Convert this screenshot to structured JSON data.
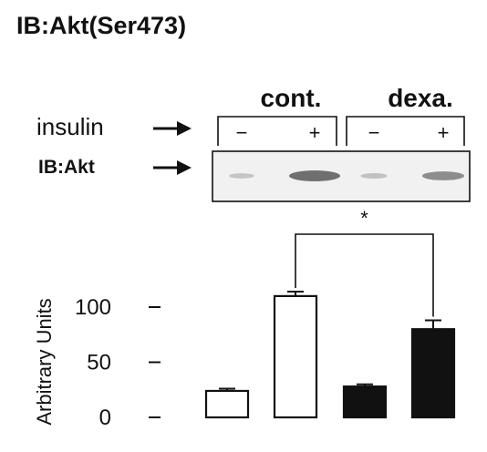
{
  "header": {
    "title": "IB:Akt(Ser473)"
  },
  "blot": {
    "group_labels": [
      "cont.",
      "dexa."
    ],
    "row_labels": [
      "insulin",
      "IB:Akt"
    ],
    "lane_signs": [
      "−",
      "+",
      "−",
      "+"
    ],
    "arrow_glyph": "→"
  },
  "significance": {
    "marker": "*"
  },
  "chart_data": {
    "type": "bar",
    "title": "",
    "xlabel": "",
    "ylabel": "Arbitrary Units",
    "ylim": [
      0,
      120
    ],
    "yticks": [
      0,
      50,
      100
    ],
    "ytick_labels": [
      "0",
      "50",
      "100"
    ],
    "categories": [
      "cont. −",
      "cont. +",
      "dexa. −",
      "dexa. +"
    ],
    "values": [
      24,
      110,
      28,
      80
    ],
    "errors": [
      2,
      4,
      2,
      8
    ],
    "bar_colors": [
      "#ffffff",
      "#ffffff",
      "#111111",
      "#111111"
    ],
    "significance_pair": [
      1,
      3
    ],
    "grid": false,
    "legend": "none"
  },
  "colors": {
    "ink": "#111111",
    "paper": "#ffffff",
    "blot_bg": "#f1f1f1",
    "band": "#6f6f6f"
  }
}
